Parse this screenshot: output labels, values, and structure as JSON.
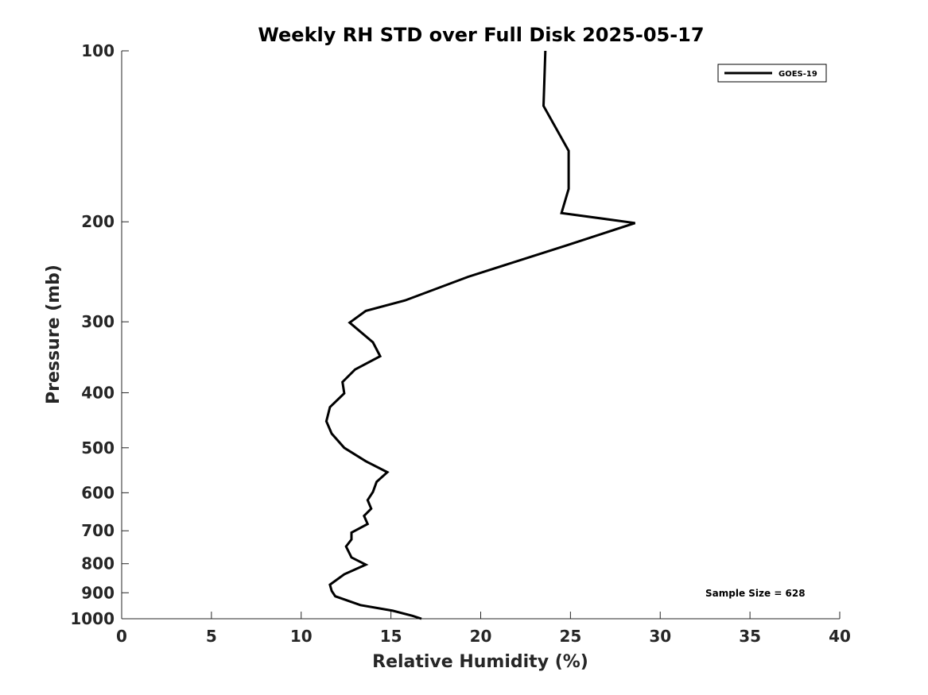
{
  "chart_data": {
    "type": "line",
    "title": "Weekly RH STD over Full Disk 2025-05-17",
    "xlabel": "Relative Humidity (%)",
    "ylabel": "Pressure (mb)",
    "xlim": [
      0,
      40
    ],
    "ylim": [
      100,
      1000
    ],
    "y_scale": "log",
    "y_inverted": true,
    "x_ticks": [
      0,
      5,
      10,
      15,
      20,
      25,
      30,
      35,
      40
    ],
    "x_tick_labels": [
      "0",
      "5",
      "10",
      "15",
      "20",
      "25",
      "30",
      "35",
      "40"
    ],
    "y_ticks": [
      100,
      200,
      300,
      400,
      500,
      600,
      700,
      800,
      900,
      1000
    ],
    "y_tick_labels": [
      "100",
      "200",
      "300",
      "400",
      "500",
      "600",
      "700",
      "800",
      "900",
      "1000"
    ],
    "grid": false,
    "legend_position": "top-right",
    "series": [
      {
        "name": "GOES-19",
        "color": "#000000",
        "points": [
          [
            23.6,
            100
          ],
          [
            23.5,
            125
          ],
          [
            24.9,
            150
          ],
          [
            24.9,
            175
          ],
          [
            24.5,
            193
          ],
          [
            28.6,
            201
          ],
          [
            24.8,
            220
          ],
          [
            19.3,
            250
          ],
          [
            15.8,
            275
          ],
          [
            13.6,
            287
          ],
          [
            12.7,
            301
          ],
          [
            14.0,
            326
          ],
          [
            14.4,
            345
          ],
          [
            13.0,
            364
          ],
          [
            12.3,
            383
          ],
          [
            12.4,
            401
          ],
          [
            11.6,
            424
          ],
          [
            11.4,
            449
          ],
          [
            11.7,
            472
          ],
          [
            12.4,
            500
          ],
          [
            13.6,
            528
          ],
          [
            14.8,
            552
          ],
          [
            14.2,
            574
          ],
          [
            14.0,
            598
          ],
          [
            13.7,
            618
          ],
          [
            13.9,
            640
          ],
          [
            13.5,
            659
          ],
          [
            13.7,
            681
          ],
          [
            12.8,
            705
          ],
          [
            12.8,
            725
          ],
          [
            12.5,
            746
          ],
          [
            12.8,
            780
          ],
          [
            13.6,
            803
          ],
          [
            12.4,
            835
          ],
          [
            11.6,
            871
          ],
          [
            11.7,
            893
          ],
          [
            11.9,
            913
          ],
          [
            13.3,
            946
          ],
          [
            15.1,
            968
          ],
          [
            16.2,
            988
          ],
          [
            16.7,
            1000
          ]
        ]
      }
    ],
    "annotations": [
      {
        "text": "Sample Size = 628",
        "x": 32.3,
        "y": 900
      }
    ]
  }
}
